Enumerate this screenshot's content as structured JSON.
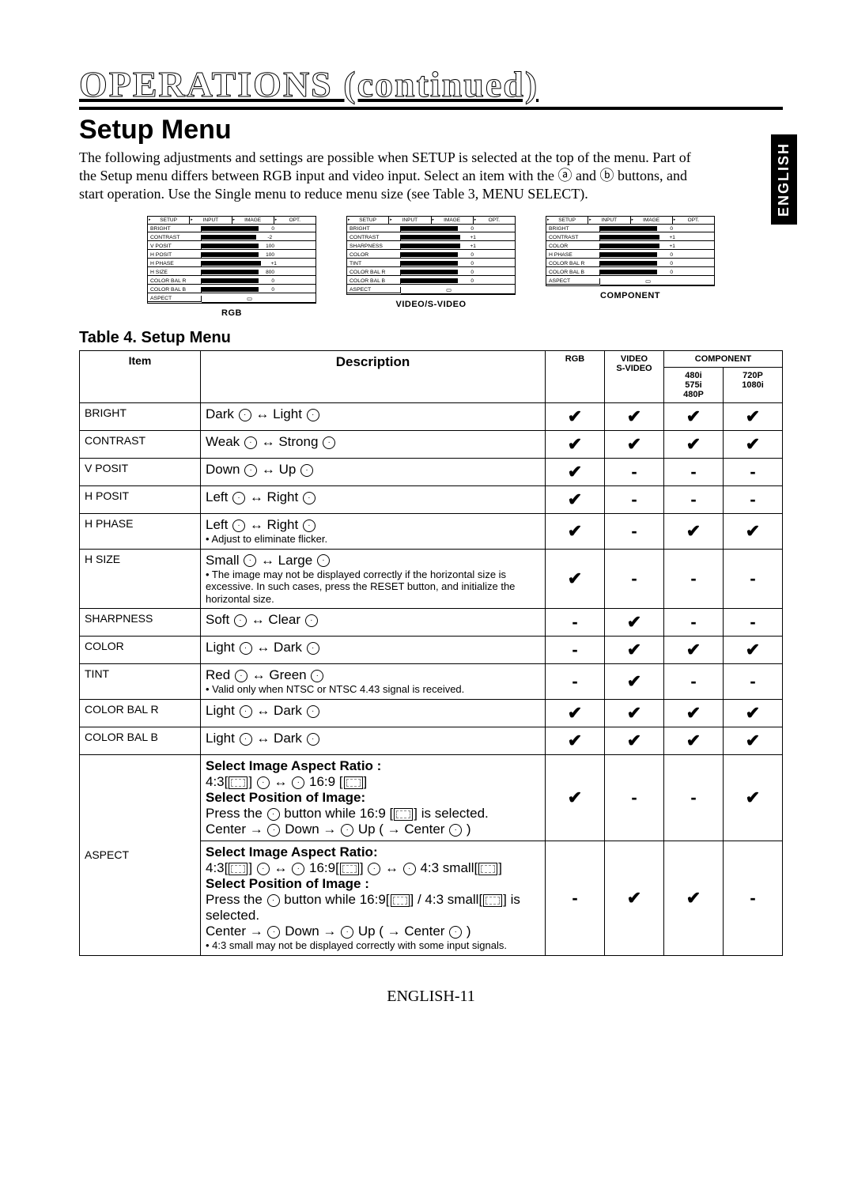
{
  "page": {
    "title": "OPERATIONS (continued)",
    "section_title": "Setup Menu",
    "lang_tab": "ENGLISH",
    "intro": "The following adjustments and settings are possible when SETUP is selected at the top of the menu. Part of the Setup menu differs between RGB input and video input. Select an item with the ⓐ and ⓑ buttons, and start operation. Use the Single menu to reduce menu size (see Table 3, MENU SELECT).",
    "footer": "ENGLISH-11"
  },
  "panels": {
    "tabs": [
      "SETUP",
      "INPUT",
      "IMAGE",
      "OPT."
    ],
    "rgb": {
      "caption": "RGB",
      "rows": [
        {
          "label": "BRIGHT",
          "bar": 0.5,
          "val": "0"
        },
        {
          "label": "CONTRAST",
          "bar": 0.48,
          "val": "-2"
        },
        {
          "label": "V POSIT",
          "bar": 0.5,
          "val": "100"
        },
        {
          "label": "H POSIT",
          "bar": 0.5,
          "val": "100"
        },
        {
          "label": "H PHASE",
          "bar": 0.52,
          "val": "+1"
        },
        {
          "label": "H SIZE",
          "bar": 0.5,
          "val": "800"
        },
        {
          "label": "COLOR BAL R",
          "bar": 0.5,
          "val": "0"
        },
        {
          "label": "COLOR BAL B",
          "bar": 0.5,
          "val": "0"
        },
        {
          "label": "ASPECT",
          "bar": 0,
          "val": ""
        }
      ]
    },
    "video": {
      "caption": "VIDEO/S-VIDEO",
      "rows": [
        {
          "label": "BRIGHT",
          "bar": 0.5,
          "val": "0"
        },
        {
          "label": "CONTRAST",
          "bar": 0.52,
          "val": "+1"
        },
        {
          "label": "SHARPNESS",
          "bar": 0.52,
          "val": "+1"
        },
        {
          "label": "COLOR",
          "bar": 0.5,
          "val": "0"
        },
        {
          "label": "TINT",
          "bar": 0.5,
          "val": "0"
        },
        {
          "label": "COLOR BAL R",
          "bar": 0.5,
          "val": "0"
        },
        {
          "label": "COLOR BAL B",
          "bar": 0.5,
          "val": "0"
        },
        {
          "label": "ASPECT",
          "bar": 0,
          "val": ""
        }
      ]
    },
    "component": {
      "caption": "COMPONENT",
      "rows": [
        {
          "label": "BRIGHT",
          "bar": 0.5,
          "val": "0"
        },
        {
          "label": "CONTRAST",
          "bar": 0.52,
          "val": "+1"
        },
        {
          "label": "COLOR",
          "bar": 0.52,
          "val": "+1"
        },
        {
          "label": "H PHASE",
          "bar": 0.5,
          "val": "0"
        },
        {
          "label": "COLOR BAL R",
          "bar": 0.5,
          "val": "0"
        },
        {
          "label": "COLOR BAL B",
          "bar": 0.5,
          "val": "0"
        },
        {
          "label": "ASPECT",
          "bar": 0,
          "val": ""
        }
      ]
    }
  },
  "table": {
    "caption": "Table 4. Setup Menu",
    "head": {
      "item": "Item",
      "desc": "Description",
      "rgb": "RGB",
      "video": "VIDEO\nS-VIDEO",
      "comp_top": "COMPONENT",
      "comp1": "480i\n575i\n480P",
      "comp2": "720P\n1080i"
    },
    "rows": [
      {
        "item": "BRIGHT",
        "desc_main": "Dark ◯ ↔ Light ◯",
        "c": [
          "✔",
          "✔",
          "✔",
          "✔"
        ]
      },
      {
        "item": "CONTRAST",
        "desc_main": "Weak ◯ ↔ Strong ◯",
        "c": [
          "✔",
          "✔",
          "✔",
          "✔"
        ]
      },
      {
        "item": "V POSIT",
        "desc_main": "Down ◯ ↔ Up ◯",
        "c": [
          "✔",
          "-",
          "-",
          "-"
        ]
      },
      {
        "item": "H POSIT",
        "desc_main": "Left ◯ ↔ Right ◯",
        "c": [
          "✔",
          "-",
          "-",
          "-"
        ]
      },
      {
        "item": "H PHASE",
        "desc_main": "Left ◯ ↔ Right ◯",
        "desc_note": "• Adjust to eliminate flicker.",
        "c": [
          "✔",
          "-",
          "✔",
          "✔"
        ]
      },
      {
        "item": "H SIZE",
        "desc_main": "Small ◯ ↔ Large ◯",
        "desc_note": "• The image may not be displayed correctly if the horizontal size is excessive. In such cases, press the RESET button, and initialize the horizontal size.",
        "c": [
          "✔",
          "-",
          "-",
          "-"
        ]
      },
      {
        "item": "SHARPNESS",
        "desc_main": "Soft ◯ ↔ Clear ◯",
        "c": [
          "-",
          "✔",
          "-",
          "-"
        ]
      },
      {
        "item": "COLOR",
        "desc_main": "Light ◯ ↔ Dark ◯",
        "c": [
          "-",
          "✔",
          "✔",
          "✔"
        ]
      },
      {
        "item": "TINT",
        "desc_main": "Red ◯ ↔ Green ◯",
        "desc_note": "• Valid only when NTSC or NTSC 4.43 signal is received.",
        "c": [
          "-",
          "✔",
          "-",
          "-"
        ]
      },
      {
        "item": "COLOR BAL R",
        "desc_main": "Light ◯ ↔ Dark ◯",
        "c": [
          "✔",
          "✔",
          "✔",
          "✔"
        ]
      },
      {
        "item": "COLOR BAL B",
        "desc_main": "Light ◯ ↔ Dark ◯",
        "c": [
          "✔",
          "✔",
          "✔",
          "✔"
        ]
      }
    ],
    "aspect": {
      "item": "ASPECT",
      "block1": {
        "l1": "Select Image Aspect Ratio :",
        "l2": "4:3[▭] ◯ ↔ ◯ 16:9 [▭]",
        "l3": "Select Position of Image:",
        "l4": "Press the ◯ button while 16:9 [▭] is selected.",
        "l5": "Center → ◯ Down → ◯ Up ( → Center ◯ )",
        "c": [
          "✔",
          "-",
          "-",
          "✔"
        ]
      },
      "block2": {
        "l1": "Select Image Aspect Ratio:",
        "l2": "4:3[▭] ◯ ↔ ◯ 16:9[▭] ◯ ↔ ◯ 4:3 small[▭]",
        "l3": "Select Position of Image :",
        "l4": "Press the ◯ button while 16:9[▭] / 4:3 small[▭] is selected.",
        "l5": "Center → ◯ Down → ◯ Up ( → Center ◯ )",
        "l6": "• 4:3 small may not be displayed correctly with some input signals.",
        "c": [
          "-",
          "✔",
          "✔",
          "-"
        ]
      }
    }
  }
}
